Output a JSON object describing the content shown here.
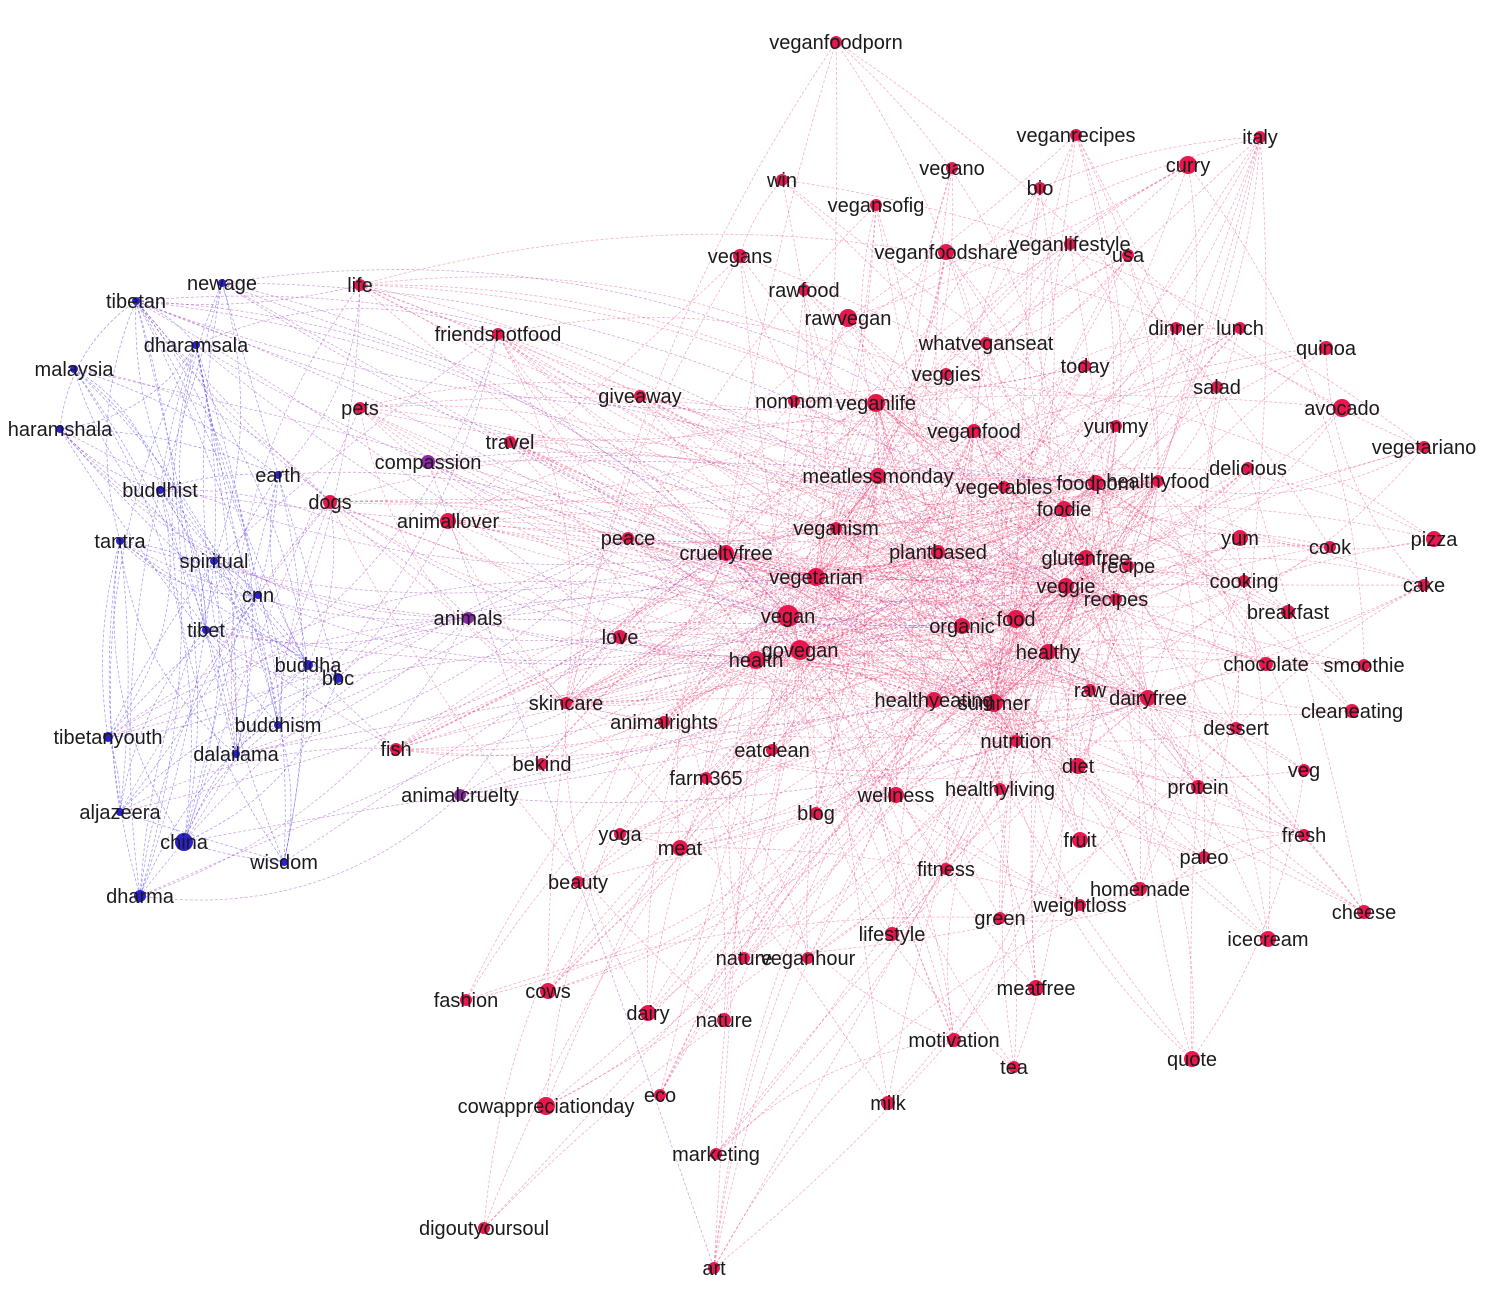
{
  "colors": {
    "pink": "#e8184f",
    "blue": "#2a1fd6",
    "edge_pink": "#e8356a",
    "edge_blue": "#4c42e6"
  },
  "nodes": [
    {
      "label": "veganfoodporn",
      "c": "p"
    },
    {
      "label": "veganrecipes",
      "c": "p"
    },
    {
      "label": "italy",
      "c": "p"
    },
    {
      "label": "curry",
      "c": "p"
    },
    {
      "label": "vegano",
      "c": "p"
    },
    {
      "label": "win",
      "c": "p"
    },
    {
      "label": "bio",
      "c": "p"
    },
    {
      "label": "vegansofig",
      "c": "p"
    },
    {
      "label": "veganlifestyle",
      "c": "p"
    },
    {
      "label": "usa",
      "c": "p"
    },
    {
      "label": "vegans",
      "c": "p"
    },
    {
      "label": "veganfoodshare",
      "c": "p"
    },
    {
      "label": "rawfood",
      "c": "p"
    },
    {
      "label": "rawvegan",
      "c": "p"
    },
    {
      "label": "dinner",
      "c": "p"
    },
    {
      "label": "lunch",
      "c": "p"
    },
    {
      "label": "quinoa",
      "c": "p"
    },
    {
      "label": "friendsnotfood",
      "c": "p"
    },
    {
      "label": "life",
      "c": "p"
    },
    {
      "label": "whatveganseat",
      "c": "p"
    },
    {
      "label": "today",
      "c": "p"
    },
    {
      "label": "veggies",
      "c": "p"
    },
    {
      "label": "salad",
      "c": "p"
    },
    {
      "label": "avocado",
      "c": "p"
    },
    {
      "label": "giveaway",
      "c": "p"
    },
    {
      "label": "nomnom",
      "c": "p"
    },
    {
      "label": "veganlife",
      "c": "p"
    },
    {
      "label": "yummy",
      "c": "p"
    },
    {
      "label": "veganfood",
      "c": "p"
    },
    {
      "label": "vegetariano",
      "c": "p"
    },
    {
      "label": "pets",
      "c": "p"
    },
    {
      "label": "travel",
      "c": "p"
    },
    {
      "label": "meatlessmonday",
      "c": "p"
    },
    {
      "label": "delicious",
      "c": "p"
    },
    {
      "label": "vegetables",
      "c": "p"
    },
    {
      "label": "foodporn",
      "c": "p"
    },
    {
      "label": "healthyfood",
      "c": "p"
    },
    {
      "label": "foodie",
      "c": "p"
    },
    {
      "label": "dogs",
      "c": "p"
    },
    {
      "label": "animallover",
      "c": "p"
    },
    {
      "label": "veganism",
      "c": "p"
    },
    {
      "label": "peace",
      "c": "p"
    },
    {
      "label": "yum",
      "c": "p"
    },
    {
      "label": "pizza",
      "c": "p"
    },
    {
      "label": "crueltyfree",
      "c": "p"
    },
    {
      "label": "plantbased",
      "c": "p"
    },
    {
      "label": "cook",
      "c": "p"
    },
    {
      "label": "glutenfree",
      "c": "p"
    },
    {
      "label": "recipe",
      "c": "p"
    },
    {
      "label": "vegetarian",
      "c": "p"
    },
    {
      "label": "cake",
      "c": "p"
    },
    {
      "label": "veggie",
      "c": "p"
    },
    {
      "label": "cooking",
      "c": "p"
    },
    {
      "label": "recipes",
      "c": "p"
    },
    {
      "label": "breakfast",
      "c": "p"
    },
    {
      "label": "vegan",
      "c": "p"
    },
    {
      "label": "organic",
      "c": "p"
    },
    {
      "label": "food",
      "c": "p"
    },
    {
      "label": "love",
      "c": "p"
    },
    {
      "label": "govegan",
      "c": "p"
    },
    {
      "label": "health",
      "c": "p"
    },
    {
      "label": "healthy",
      "c": "p"
    },
    {
      "label": "chocolate",
      "c": "p"
    },
    {
      "label": "smoothie",
      "c": "p"
    },
    {
      "label": "skincare",
      "c": "p"
    },
    {
      "label": "healthyeating",
      "c": "p"
    },
    {
      "label": "summer",
      "c": "p"
    },
    {
      "label": "raw",
      "c": "p"
    },
    {
      "label": "dairyfree",
      "c": "p"
    },
    {
      "label": "cleaneating",
      "c": "p"
    },
    {
      "label": "animalrights",
      "c": "p"
    },
    {
      "label": "dessert",
      "c": "p"
    },
    {
      "label": "fish",
      "c": "p"
    },
    {
      "label": "nutrition",
      "c": "p"
    },
    {
      "label": "eatclean",
      "c": "p"
    },
    {
      "label": "bekind",
      "c": "p"
    },
    {
      "label": "diet",
      "c": "p"
    },
    {
      "label": "veg",
      "c": "p"
    },
    {
      "label": "farm365",
      "c": "p"
    },
    {
      "label": "protein",
      "c": "p"
    },
    {
      "label": "healthyliving",
      "c": "p"
    },
    {
      "label": "wellness",
      "c": "p"
    },
    {
      "label": "blog",
      "c": "p"
    },
    {
      "label": "fruit",
      "c": "p"
    },
    {
      "label": "fresh",
      "c": "p"
    },
    {
      "label": "yoga",
      "c": "p"
    },
    {
      "label": "meat",
      "c": "p"
    },
    {
      "label": "paleo",
      "c": "p"
    },
    {
      "label": "fitness",
      "c": "p"
    },
    {
      "label": "beauty",
      "c": "p"
    },
    {
      "label": "homemade",
      "c": "p"
    },
    {
      "label": "weightloss",
      "c": "p"
    },
    {
      "label": "cheese",
      "c": "p"
    },
    {
      "label": "green",
      "c": "p"
    },
    {
      "label": "lifestyle",
      "c": "p"
    },
    {
      "label": "icecream",
      "c": "p"
    },
    {
      "label": "nature",
      "c": "p"
    },
    {
      "label": "veganhour",
      "c": "p"
    },
    {
      "label": "fashion",
      "c": "p"
    },
    {
      "label": "cows",
      "c": "p"
    },
    {
      "label": "meatfree",
      "c": "p"
    },
    {
      "label": "dairy",
      "c": "p"
    },
    {
      "label": "nature",
      "c": "p"
    },
    {
      "label": "motivation",
      "c": "p"
    },
    {
      "label": "tea",
      "c": "p"
    },
    {
      "label": "quote",
      "c": "p"
    },
    {
      "label": "eco",
      "c": "p"
    },
    {
      "label": "milk",
      "c": "p"
    },
    {
      "label": "cowappreciationday",
      "c": "p"
    },
    {
      "label": "marketing",
      "c": "p"
    },
    {
      "label": "digoutyoursoul",
      "c": "p"
    },
    {
      "label": "art",
      "c": "p"
    },
    {
      "label": "compassion",
      "c": "m"
    },
    {
      "label": "animals",
      "c": "m"
    },
    {
      "label": "animalcruelty",
      "c": "m"
    },
    {
      "label": "newage",
      "c": "b"
    },
    {
      "label": "tibetan",
      "c": "b"
    },
    {
      "label": "dharamsala",
      "c": "b"
    },
    {
      "label": "malaysia",
      "c": "b"
    },
    {
      "label": "haramshala",
      "c": "b"
    },
    {
      "label": "earth",
      "c": "b"
    },
    {
      "label": "buddhist",
      "c": "b"
    },
    {
      "label": "tantra",
      "c": "b"
    },
    {
      "label": "spiritual",
      "c": "b"
    },
    {
      "label": "cnn",
      "c": "b"
    },
    {
      "label": "tibet",
      "c": "b"
    },
    {
      "label": "buddha",
      "c": "b"
    },
    {
      "label": "bbc",
      "c": "b"
    },
    {
      "label": "buddhism",
      "c": "b"
    },
    {
      "label": "tibetanyouth",
      "c": "b"
    },
    {
      "label": "dalailama",
      "c": "b"
    },
    {
      "label": "aljazeera",
      "c": "b"
    },
    {
      "label": "china",
      "c": "b"
    },
    {
      "label": "wisdom",
      "c": "b"
    },
    {
      "label": "dharma",
      "c": "b"
    }
  ]
}
